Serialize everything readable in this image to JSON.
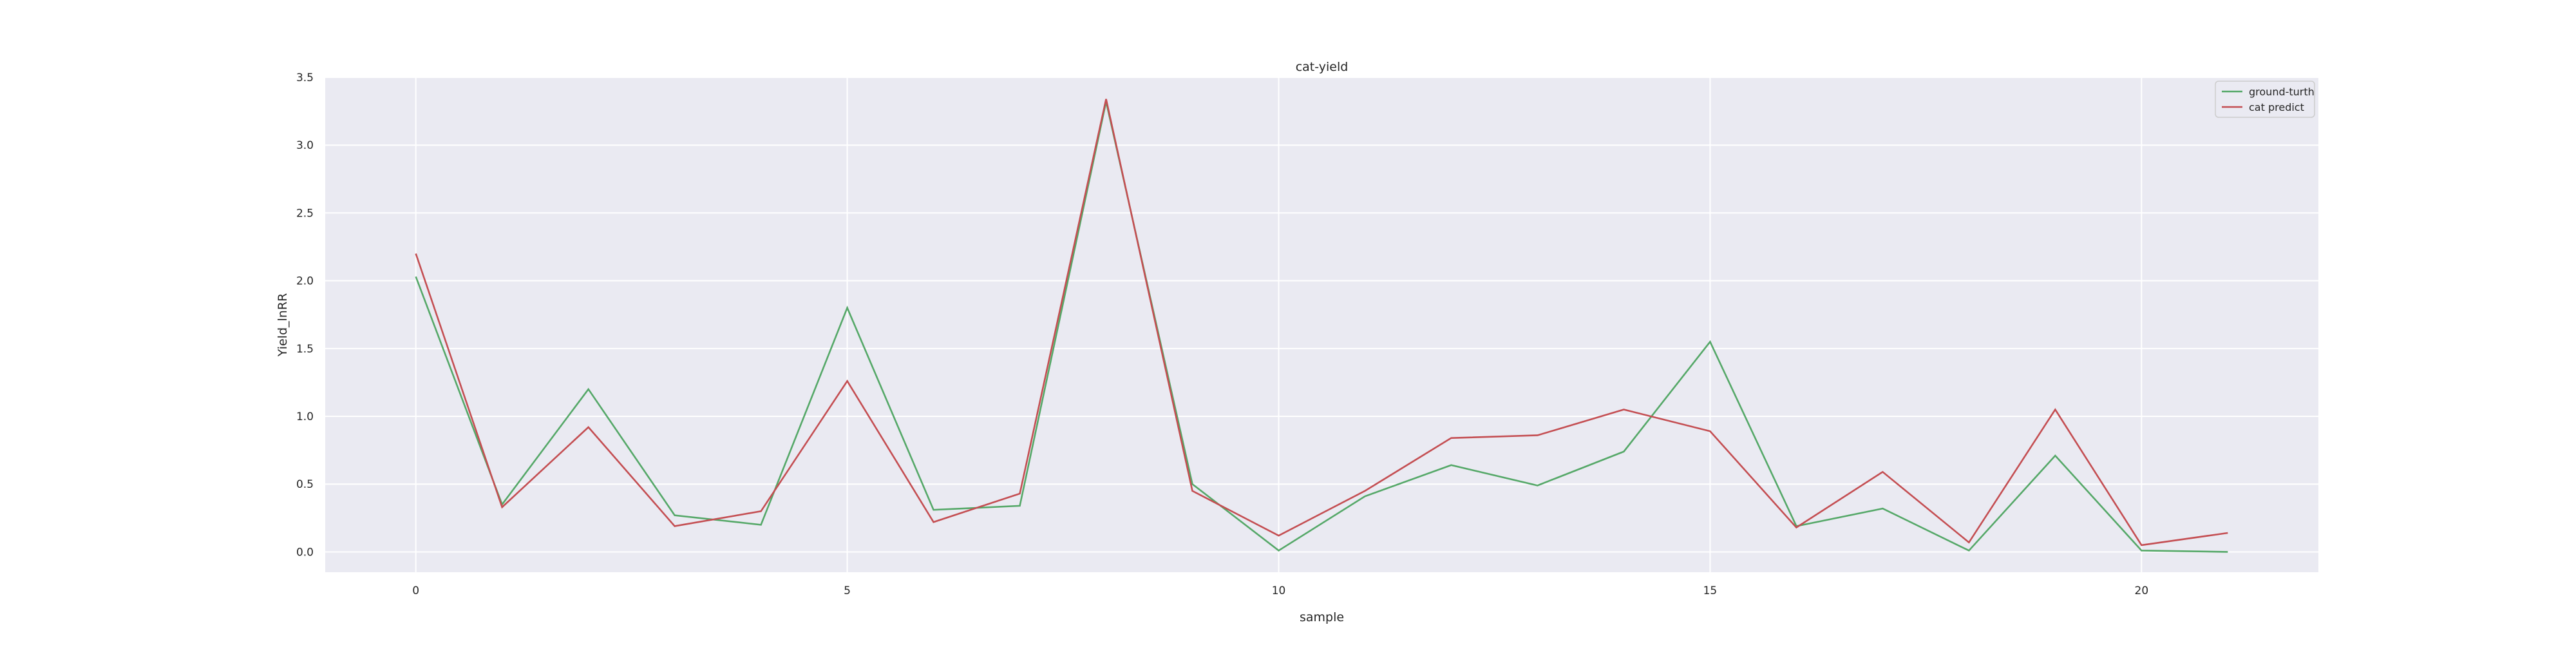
{
  "chart_data": {
    "type": "line",
    "title": "cat-yield",
    "xlabel": "sample",
    "ylabel": "Yield_lnRR",
    "xlim": [
      -1.05,
      22.05
    ],
    "ylim": [
      -0.15,
      3.5
    ],
    "x_ticks": [
      0,
      5,
      10,
      15,
      20
    ],
    "y_ticks": [
      0.0,
      0.5,
      1.0,
      1.5,
      2.0,
      2.5,
      3.0,
      3.5
    ],
    "x_tick_labels": [
      "0",
      "5",
      "10",
      "15",
      "20"
    ],
    "y_tick_labels": [
      "0.0",
      "0.5",
      "1.0",
      "1.5",
      "2.0",
      "2.5",
      "3.0",
      "3.5"
    ],
    "grid": true,
    "legend_position": "top-right",
    "background_color": "#eaeaf2",
    "x": [
      0,
      1,
      2,
      3,
      4,
      5,
      6,
      7,
      8,
      9,
      10,
      11,
      12,
      13,
      14,
      15,
      16,
      17,
      18,
      19,
      20,
      21
    ],
    "series": [
      {
        "name": "ground-turth",
        "color": "#55a868",
        "values": [
          2.03,
          0.35,
          1.2,
          0.27,
          0.2,
          1.8,
          0.31,
          0.34,
          3.32,
          0.5,
          0.01,
          0.41,
          0.64,
          0.49,
          0.74,
          1.55,
          0.19,
          0.32,
          0.01,
          0.71,
          0.01,
          0.0
        ]
      },
      {
        "name": "cat predict",
        "color": "#c44e52",
        "values": [
          2.2,
          0.33,
          0.92,
          0.19,
          0.3,
          1.26,
          0.22,
          0.43,
          3.34,
          0.45,
          0.12,
          0.45,
          0.84,
          0.86,
          1.05,
          0.89,
          0.18,
          0.59,
          0.07,
          1.05,
          0.05,
          0.14
        ]
      }
    ]
  }
}
